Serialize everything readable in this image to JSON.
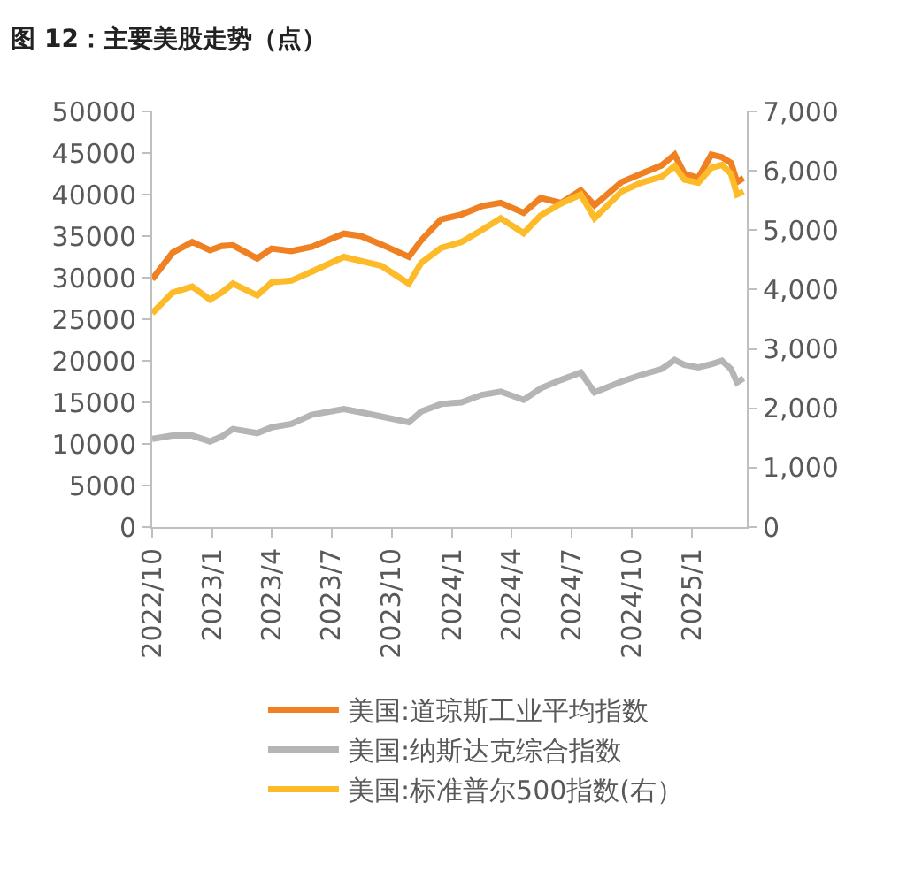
{
  "chart_data": {
    "type": "line",
    "title": "图 12：主要美股走势（点）",
    "x": [
      "2022-10-01",
      "2022-11-01",
      "2022-12-01",
      "2022-12-28",
      "2023-01-15",
      "2023-02-01",
      "2023-03-10",
      "2023-04-01",
      "2023-05-01",
      "2023-06-01",
      "2023-07-20",
      "2023-08-15",
      "2023-09-15",
      "2023-10-27",
      "2023-11-15",
      "2023-12-15",
      "2024-01-15",
      "2024-02-15",
      "2024-03-15",
      "2024-04-19",
      "2024-05-15",
      "2024-06-15",
      "2024-07-15",
      "2024-08-05",
      "2024-09-15",
      "2024-10-15",
      "2024-11-15",
      "2024-12-05",
      "2024-12-20",
      "2025-01-10",
      "2025-01-30",
      "2025-02-15",
      "2025-03-01",
      "2025-03-10",
      "2025-03-20"
    ],
    "series": [
      {
        "name": "美国:道琼斯工业平均指数",
        "color": "#f08122",
        "values": [
          29800,
          33000,
          34300,
          33300,
          33800,
          33900,
          32300,
          33500,
          33200,
          33700,
          35300,
          35000,
          34000,
          32500,
          34500,
          37000,
          37600,
          38600,
          39000,
          37800,
          39600,
          39000,
          40500,
          38700,
          41500,
          42500,
          43500,
          44800,
          42500,
          42000,
          44800,
          44500,
          43800,
          41500,
          42000
        ]
      },
      {
        "name": "美国:纳斯达克综合指数",
        "color": "#b5b5b5",
        "values": [
          10600,
          11000,
          11000,
          10300,
          10900,
          11800,
          11300,
          12000,
          12400,
          13500,
          14200,
          13800,
          13300,
          12600,
          13900,
          14800,
          15000,
          15900,
          16300,
          15300,
          16700,
          17700,
          18600,
          16200,
          17500,
          18300,
          19000,
          20100,
          19500,
          19200,
          19600,
          20000,
          19000,
          17400,
          17900
        ]
      },
      {
        "name": "美国:标准普尔500指数(右）",
        "color": "#fdbb2a",
        "axis": "y2",
        "values": [
          3600,
          3950,
          4050,
          3830,
          3950,
          4100,
          3900,
          4120,
          4150,
          4300,
          4550,
          4480,
          4400,
          4100,
          4450,
          4700,
          4800,
          5000,
          5200,
          4950,
          5250,
          5450,
          5600,
          5200,
          5650,
          5800,
          5900,
          6080,
          5850,
          5800,
          6050,
          6100,
          5950,
          5600,
          5650
        ]
      }
    ],
    "xlim": [
      "2022-10-01",
      "2025-03-25"
    ],
    "xticks": [
      {
        "value": "2022-10-01",
        "label": "2022/10"
      },
      {
        "value": "2023-01-01",
        "label": "2023/1"
      },
      {
        "value": "2023-04-01",
        "label": "2023/4"
      },
      {
        "value": "2023-07-01",
        "label": "2023/7"
      },
      {
        "value": "2023-10-01",
        "label": "2023/10"
      },
      {
        "value": "2024-01-01",
        "label": "2024/1"
      },
      {
        "value": "2024-04-01",
        "label": "2024/4"
      },
      {
        "value": "2024-07-01",
        "label": "2024/7"
      },
      {
        "value": "2024-10-01",
        "label": "2024/10"
      },
      {
        "value": "2025-01-01",
        "label": "2025/1"
      }
    ],
    "ylim": [
      0,
      50000
    ],
    "yticks": [
      0,
      5000,
      10000,
      15000,
      20000,
      25000,
      30000,
      35000,
      40000,
      45000,
      50000
    ],
    "y2lim": [
      0,
      7000
    ],
    "y2ticks": [
      0,
      {
        "value": 1000,
        "label": "1,000"
      },
      {
        "value": 2000,
        "label": "2,000"
      },
      {
        "value": 3000,
        "label": "3,000"
      },
      {
        "value": 4000,
        "label": "4,000"
      },
      {
        "value": 5000,
        "label": "5,000"
      },
      {
        "value": 6000,
        "label": "6,000"
      },
      {
        "value": 7000,
        "label": "7,000"
      }
    ],
    "grid": false,
    "legend": "bottom",
    "marker": "none",
    "line_style": "solid"
  }
}
